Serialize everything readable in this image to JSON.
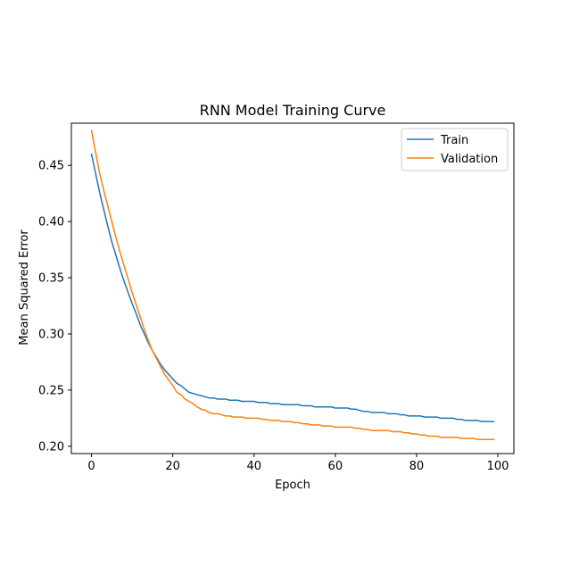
{
  "chart_data": {
    "type": "line",
    "title": "RNN Model Training Curve",
    "xlabel": "Epoch",
    "ylabel": "Mean Squared Error",
    "xlim": [
      -4.95,
      103.95
    ],
    "ylim": [
      0.1935,
      0.4875
    ],
    "xticks": [
      0,
      20,
      40,
      60,
      80,
      100
    ],
    "yticks": [
      0.2,
      0.25,
      0.3,
      0.35,
      0.4,
      0.45
    ],
    "grid": false,
    "legend_position": "top-right",
    "series": [
      {
        "name": "Train",
        "color": "#1f77b4",
        "x": [
          0,
          1,
          2,
          3,
          4,
          5,
          6,
          7,
          8,
          9,
          10,
          11,
          12,
          13,
          14,
          15,
          16,
          17,
          18,
          19,
          20,
          21,
          22,
          23,
          24,
          25,
          26,
          27,
          28,
          29,
          30,
          31,
          32,
          33,
          34,
          35,
          36,
          37,
          38,
          39,
          40,
          41,
          42,
          43,
          44,
          45,
          46,
          47,
          48,
          49,
          50,
          51,
          52,
          53,
          54,
          55,
          56,
          57,
          58,
          59,
          60,
          61,
          62,
          63,
          64,
          65,
          66,
          67,
          68,
          69,
          70,
          71,
          72,
          73,
          74,
          75,
          76,
          77,
          78,
          79,
          80,
          81,
          82,
          83,
          84,
          85,
          86,
          87,
          88,
          89,
          90,
          91,
          92,
          93,
          94,
          95,
          96,
          97,
          98,
          99
        ],
        "values": [
          0.46,
          0.443,
          0.426,
          0.411,
          0.396,
          0.382,
          0.37,
          0.358,
          0.347,
          0.337,
          0.327,
          0.318,
          0.308,
          0.3,
          0.292,
          0.285,
          0.279,
          0.273,
          0.268,
          0.264,
          0.26,
          0.256,
          0.254,
          0.251,
          0.248,
          0.247,
          0.246,
          0.245,
          0.244,
          0.243,
          0.243,
          0.242,
          0.242,
          0.242,
          0.241,
          0.241,
          0.241,
          0.24,
          0.24,
          0.24,
          0.24,
          0.239,
          0.239,
          0.239,
          0.238,
          0.238,
          0.238,
          0.237,
          0.237,
          0.237,
          0.237,
          0.237,
          0.236,
          0.236,
          0.236,
          0.235,
          0.235,
          0.235,
          0.235,
          0.235,
          0.234,
          0.234,
          0.234,
          0.234,
          0.233,
          0.233,
          0.232,
          0.231,
          0.231,
          0.23,
          0.23,
          0.23,
          0.23,
          0.229,
          0.229,
          0.229,
          0.228,
          0.228,
          0.227,
          0.227,
          0.227,
          0.227,
          0.226,
          0.226,
          0.226,
          0.226,
          0.225,
          0.225,
          0.225,
          0.225,
          0.224,
          0.224,
          0.223,
          0.223,
          0.223,
          0.223,
          0.222,
          0.222,
          0.222,
          0.222
        ]
      },
      {
        "name": "Validation",
        "color": "#ff7f0e",
        "x": [
          0,
          1,
          2,
          3,
          4,
          5,
          6,
          7,
          8,
          9,
          10,
          11,
          12,
          13,
          14,
          15,
          16,
          17,
          18,
          19,
          20,
          21,
          22,
          23,
          24,
          25,
          26,
          27,
          28,
          29,
          30,
          31,
          32,
          33,
          34,
          35,
          36,
          37,
          38,
          39,
          40,
          41,
          42,
          43,
          44,
          45,
          46,
          47,
          48,
          49,
          50,
          51,
          52,
          53,
          54,
          55,
          56,
          57,
          58,
          59,
          60,
          61,
          62,
          63,
          64,
          65,
          66,
          67,
          68,
          69,
          70,
          71,
          72,
          73,
          74,
          75,
          76,
          77,
          78,
          79,
          80,
          81,
          82,
          83,
          84,
          85,
          86,
          87,
          88,
          89,
          90,
          91,
          92,
          93,
          94,
          95,
          96,
          97,
          98,
          99
        ],
        "values": [
          0.481,
          0.462,
          0.443,
          0.428,
          0.414,
          0.4,
          0.386,
          0.373,
          0.361,
          0.349,
          0.337,
          0.326,
          0.315,
          0.304,
          0.294,
          0.285,
          0.278,
          0.271,
          0.264,
          0.259,
          0.254,
          0.248,
          0.246,
          0.242,
          0.24,
          0.238,
          0.235,
          0.233,
          0.232,
          0.23,
          0.229,
          0.229,
          0.228,
          0.227,
          0.227,
          0.226,
          0.226,
          0.226,
          0.225,
          0.225,
          0.225,
          0.225,
          0.224,
          0.224,
          0.223,
          0.223,
          0.223,
          0.222,
          0.222,
          0.222,
          0.221,
          0.221,
          0.22,
          0.22,
          0.219,
          0.219,
          0.219,
          0.218,
          0.218,
          0.218,
          0.217,
          0.217,
          0.217,
          0.217,
          0.217,
          0.216,
          0.216,
          0.215,
          0.215,
          0.214,
          0.214,
          0.214,
          0.214,
          0.214,
          0.213,
          0.213,
          0.213,
          0.212,
          0.212,
          0.211,
          0.211,
          0.21,
          0.21,
          0.209,
          0.209,
          0.209,
          0.208,
          0.208,
          0.208,
          0.208,
          0.208,
          0.207,
          0.207,
          0.207,
          0.207,
          0.206,
          0.206,
          0.206,
          0.206,
          0.206
        ]
      }
    ]
  }
}
